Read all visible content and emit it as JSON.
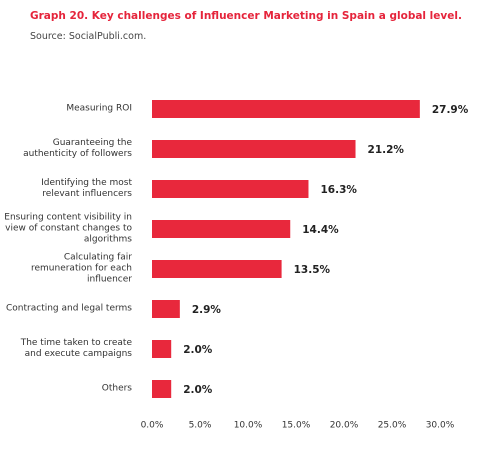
{
  "chart_data": {
    "type": "bar",
    "orientation": "horizontal",
    "title": "Graph 20. Key challenges of Influencer Marketing in Spain a global level.",
    "subtitle": "Source: SocialPubli.com.",
    "categories": [
      "Measuring ROI",
      "Guaranteeing the authenticity of followers",
      "Identifying the most relevant influencers",
      "Ensuring content visibility in view of constant changes to algorithms",
      "Calculating fair remuneration for each influencer",
      "Contracting and legal terms",
      "The time taken to create and execute campaigns",
      "Others"
    ],
    "values": [
      27.9,
      21.2,
      16.3,
      14.4,
      13.5,
      2.9,
      2.0,
      2.0
    ],
    "value_labels": [
      "27.9%",
      "21.2%",
      "16.3%",
      "14.4%",
      "13.5%",
      "2.9%",
      "2.0%",
      "2.0%"
    ],
    "color": "#e8283c",
    "xlim": [
      0,
      30
    ],
    "xticks": [
      {
        "value": 0,
        "label": "0.0%"
      },
      {
        "value": 5,
        "label": "5.0%"
      },
      {
        "value": 10,
        "label": "10.0%"
      },
      {
        "value": 15,
        "label": "15.0%"
      },
      {
        "value": 20,
        "label": "20.0%"
      },
      {
        "value": 25,
        "label": "25.0%"
      },
      {
        "value": 30,
        "label": "30.0%"
      }
    ],
    "grid": false
  }
}
